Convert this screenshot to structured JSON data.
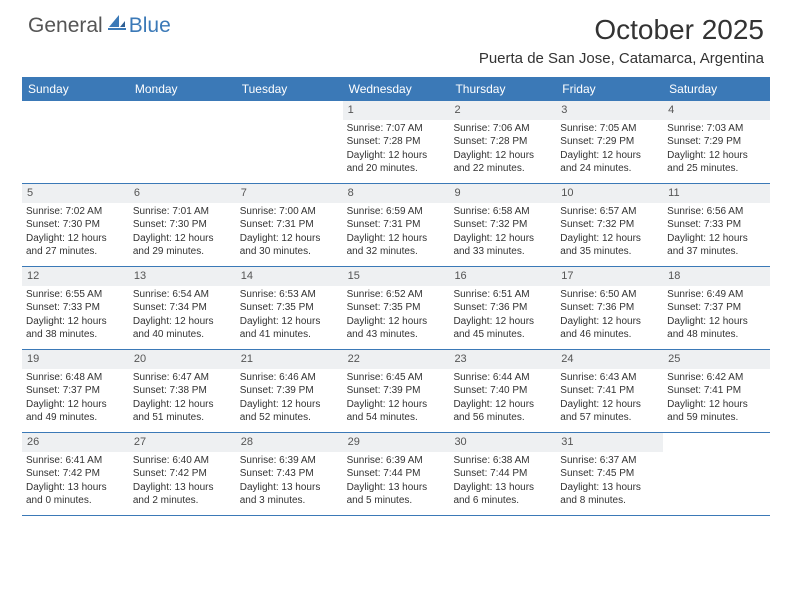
{
  "brand": {
    "text1": "General",
    "text2": "Blue"
  },
  "title": "October 2025",
  "location": "Puerta de San Jose, Catamarca, Argentina",
  "colors": {
    "header_bg": "#3b79b7",
    "daynum_bg": "#eef0f2",
    "text": "#333333"
  },
  "typography": {
    "title_fontsize": 28,
    "location_fontsize": 15,
    "header_fontsize": 12,
    "cell_fontsize": 10
  },
  "day_names": [
    "Sunday",
    "Monday",
    "Tuesday",
    "Wednesday",
    "Thursday",
    "Friday",
    "Saturday"
  ],
  "weeks": [
    [
      {
        "empty": true
      },
      {
        "empty": true
      },
      {
        "empty": true
      },
      {
        "num": "1",
        "sunrise": "Sunrise: 7:07 AM",
        "sunset": "Sunset: 7:28 PM",
        "daylight": "Daylight: 12 hours and 20 minutes."
      },
      {
        "num": "2",
        "sunrise": "Sunrise: 7:06 AM",
        "sunset": "Sunset: 7:28 PM",
        "daylight": "Daylight: 12 hours and 22 minutes."
      },
      {
        "num": "3",
        "sunrise": "Sunrise: 7:05 AM",
        "sunset": "Sunset: 7:29 PM",
        "daylight": "Daylight: 12 hours and 24 minutes."
      },
      {
        "num": "4",
        "sunrise": "Sunrise: 7:03 AM",
        "sunset": "Sunset: 7:29 PM",
        "daylight": "Daylight: 12 hours and 25 minutes."
      }
    ],
    [
      {
        "num": "5",
        "sunrise": "Sunrise: 7:02 AM",
        "sunset": "Sunset: 7:30 PM",
        "daylight": "Daylight: 12 hours and 27 minutes."
      },
      {
        "num": "6",
        "sunrise": "Sunrise: 7:01 AM",
        "sunset": "Sunset: 7:30 PM",
        "daylight": "Daylight: 12 hours and 29 minutes."
      },
      {
        "num": "7",
        "sunrise": "Sunrise: 7:00 AM",
        "sunset": "Sunset: 7:31 PM",
        "daylight": "Daylight: 12 hours and 30 minutes."
      },
      {
        "num": "8",
        "sunrise": "Sunrise: 6:59 AM",
        "sunset": "Sunset: 7:31 PM",
        "daylight": "Daylight: 12 hours and 32 minutes."
      },
      {
        "num": "9",
        "sunrise": "Sunrise: 6:58 AM",
        "sunset": "Sunset: 7:32 PM",
        "daylight": "Daylight: 12 hours and 33 minutes."
      },
      {
        "num": "10",
        "sunrise": "Sunrise: 6:57 AM",
        "sunset": "Sunset: 7:32 PM",
        "daylight": "Daylight: 12 hours and 35 minutes."
      },
      {
        "num": "11",
        "sunrise": "Sunrise: 6:56 AM",
        "sunset": "Sunset: 7:33 PM",
        "daylight": "Daylight: 12 hours and 37 minutes."
      }
    ],
    [
      {
        "num": "12",
        "sunrise": "Sunrise: 6:55 AM",
        "sunset": "Sunset: 7:33 PM",
        "daylight": "Daylight: 12 hours and 38 minutes."
      },
      {
        "num": "13",
        "sunrise": "Sunrise: 6:54 AM",
        "sunset": "Sunset: 7:34 PM",
        "daylight": "Daylight: 12 hours and 40 minutes."
      },
      {
        "num": "14",
        "sunrise": "Sunrise: 6:53 AM",
        "sunset": "Sunset: 7:35 PM",
        "daylight": "Daylight: 12 hours and 41 minutes."
      },
      {
        "num": "15",
        "sunrise": "Sunrise: 6:52 AM",
        "sunset": "Sunset: 7:35 PM",
        "daylight": "Daylight: 12 hours and 43 minutes."
      },
      {
        "num": "16",
        "sunrise": "Sunrise: 6:51 AM",
        "sunset": "Sunset: 7:36 PM",
        "daylight": "Daylight: 12 hours and 45 minutes."
      },
      {
        "num": "17",
        "sunrise": "Sunrise: 6:50 AM",
        "sunset": "Sunset: 7:36 PM",
        "daylight": "Daylight: 12 hours and 46 minutes."
      },
      {
        "num": "18",
        "sunrise": "Sunrise: 6:49 AM",
        "sunset": "Sunset: 7:37 PM",
        "daylight": "Daylight: 12 hours and 48 minutes."
      }
    ],
    [
      {
        "num": "19",
        "sunrise": "Sunrise: 6:48 AM",
        "sunset": "Sunset: 7:37 PM",
        "daylight": "Daylight: 12 hours and 49 minutes."
      },
      {
        "num": "20",
        "sunrise": "Sunrise: 6:47 AM",
        "sunset": "Sunset: 7:38 PM",
        "daylight": "Daylight: 12 hours and 51 minutes."
      },
      {
        "num": "21",
        "sunrise": "Sunrise: 6:46 AM",
        "sunset": "Sunset: 7:39 PM",
        "daylight": "Daylight: 12 hours and 52 minutes."
      },
      {
        "num": "22",
        "sunrise": "Sunrise: 6:45 AM",
        "sunset": "Sunset: 7:39 PM",
        "daylight": "Daylight: 12 hours and 54 minutes."
      },
      {
        "num": "23",
        "sunrise": "Sunrise: 6:44 AM",
        "sunset": "Sunset: 7:40 PM",
        "daylight": "Daylight: 12 hours and 56 minutes."
      },
      {
        "num": "24",
        "sunrise": "Sunrise: 6:43 AM",
        "sunset": "Sunset: 7:41 PM",
        "daylight": "Daylight: 12 hours and 57 minutes."
      },
      {
        "num": "25",
        "sunrise": "Sunrise: 6:42 AM",
        "sunset": "Sunset: 7:41 PM",
        "daylight": "Daylight: 12 hours and 59 minutes."
      }
    ],
    [
      {
        "num": "26",
        "sunrise": "Sunrise: 6:41 AM",
        "sunset": "Sunset: 7:42 PM",
        "daylight": "Daylight: 13 hours and 0 minutes."
      },
      {
        "num": "27",
        "sunrise": "Sunrise: 6:40 AM",
        "sunset": "Sunset: 7:42 PM",
        "daylight": "Daylight: 13 hours and 2 minutes."
      },
      {
        "num": "28",
        "sunrise": "Sunrise: 6:39 AM",
        "sunset": "Sunset: 7:43 PM",
        "daylight": "Daylight: 13 hours and 3 minutes."
      },
      {
        "num": "29",
        "sunrise": "Sunrise: 6:39 AM",
        "sunset": "Sunset: 7:44 PM",
        "daylight": "Daylight: 13 hours and 5 minutes."
      },
      {
        "num": "30",
        "sunrise": "Sunrise: 6:38 AM",
        "sunset": "Sunset: 7:44 PM",
        "daylight": "Daylight: 13 hours and 6 minutes."
      },
      {
        "num": "31",
        "sunrise": "Sunrise: 6:37 AM",
        "sunset": "Sunset: 7:45 PM",
        "daylight": "Daylight: 13 hours and 8 minutes."
      },
      {
        "empty": true
      }
    ]
  ]
}
